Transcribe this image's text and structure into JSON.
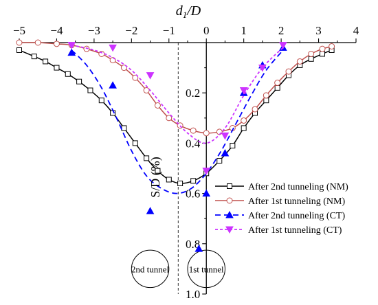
{
  "chart_data": {
    "type": "line",
    "xlabel": "d1/D",
    "xlabel_main": "d",
    "xlabel_sub": "1",
    "xlabel_tail": "/D",
    "ylabel": "S/D (%)",
    "xlim": [
      -5,
      4
    ],
    "ylim": [
      0,
      1.0
    ],
    "y_inverted": true,
    "x_axis_position": "top",
    "y_axis_at_x": 0,
    "x_ticks": [
      -5,
      -4,
      -3,
      -2,
      -1,
      0,
      1,
      2,
      3,
      4
    ],
    "x_tick_labels": [
      "−5",
      "−4",
      "−3",
      "−2",
      "−1",
      "0",
      "1",
      "2",
      "3",
      "4"
    ],
    "y_ticks": [
      0.2,
      0.4,
      0.6,
      0.8,
      1.0
    ],
    "y_tick_labels": [
      "0.2",
      "0.4",
      "0.6",
      "0.8",
      "1.0"
    ],
    "grid": false,
    "legend_position": "right",
    "reference_line_x": -0.75,
    "series": [
      {
        "name": "After 2nd tunneling (NM)",
        "color": "#000000",
        "line": "solid",
        "marker": "square-open",
        "x": [
          -5.0,
          -4.6,
          -4.3,
          -4.0,
          -3.7,
          -3.4,
          -3.1,
          -2.8,
          -2.5,
          -2.2,
          -1.9,
          -1.6,
          -1.3,
          -1.0,
          -0.7,
          -0.35,
          0.0,
          0.35,
          0.7,
          1.0,
          1.3,
          1.6,
          1.9,
          2.2,
          2.5,
          2.8,
          3.1,
          3.35
        ],
        "y": [
          0.03,
          0.055,
          0.075,
          0.1,
          0.125,
          0.155,
          0.19,
          0.23,
          0.28,
          0.34,
          0.4,
          0.46,
          0.51,
          0.545,
          0.56,
          0.55,
          0.52,
          0.47,
          0.41,
          0.34,
          0.28,
          0.23,
          0.18,
          0.13,
          0.09,
          0.065,
          0.045,
          0.03
        ]
      },
      {
        "name": "After 1st tunneling (NM)",
        "color": "#C0504D",
        "line": "solid",
        "marker": "circle-open",
        "x": [
          -5.0,
          -4.5,
          -4.0,
          -3.6,
          -3.2,
          -2.8,
          -2.5,
          -2.2,
          -1.9,
          -1.6,
          -1.3,
          -1.0,
          -0.7,
          -0.35,
          0.0,
          0.35,
          0.7,
          1.0,
          1.3,
          1.6,
          1.9,
          2.2,
          2.5,
          2.8,
          3.1,
          3.35
        ],
        "y": [
          0.0,
          0.0,
          0.005,
          0.01,
          0.025,
          0.045,
          0.07,
          0.1,
          0.14,
          0.19,
          0.25,
          0.3,
          0.33,
          0.35,
          0.36,
          0.355,
          0.34,
          0.31,
          0.265,
          0.21,
          0.16,
          0.115,
          0.075,
          0.045,
          0.025,
          0.015
        ]
      },
      {
        "name": "After 2nd  tunneling (CT)",
        "color": "#0000FF",
        "line": "dashed",
        "marker": "triangle-up",
        "fit_x": [
          -3.6,
          -3.2,
          -2.8,
          -2.4,
          -2.0,
          -1.6,
          -1.2,
          -0.8,
          -0.4,
          0.0,
          0.4,
          0.8,
          1.2,
          1.6,
          2.05
        ],
        "fit_y": [
          0.03,
          0.09,
          0.18,
          0.3,
          0.43,
          0.53,
          0.58,
          0.6,
          0.58,
          0.52,
          0.43,
          0.32,
          0.21,
          0.11,
          0.03
        ],
        "x": [
          -3.6,
          -2.5,
          -1.5,
          -0.2,
          0.0,
          0.5,
          1.0,
          1.5,
          2.05
        ],
        "y": [
          0.04,
          0.17,
          0.67,
          0.82,
          0.6,
          0.44,
          0.2,
          0.09,
          0.02
        ]
      },
      {
        "name": "After 1st tunneling (CT)",
        "color": "#CC33FF",
        "line": "dotted",
        "marker": "triangle-down",
        "fit_x": [
          -3.6,
          -3.0,
          -2.5,
          -2.0,
          -1.5,
          -1.0,
          -0.5,
          0.0,
          0.5,
          1.0,
          1.5,
          2.05
        ],
        "fit_y": [
          0.01,
          0.03,
          0.06,
          0.11,
          0.19,
          0.28,
          0.36,
          0.4,
          0.34,
          0.21,
          0.1,
          0.02
        ],
        "x": [
          -3.6,
          -2.5,
          -1.5,
          0.0,
          0.5,
          1.0,
          1.5,
          2.05
        ],
        "y": [
          0.01,
          0.02,
          0.13,
          0.51,
          0.37,
          0.19,
          0.1,
          0.01
        ]
      }
    ]
  },
  "tunnels": [
    {
      "label": "2nd tunnel",
      "center_x": -1.5,
      "center_y": 0.9,
      "radius_d": 0.5
    },
    {
      "label": "1st tunnel",
      "center_x": 0.0,
      "center_y": 0.9,
      "radius_d": 0.5
    }
  ]
}
